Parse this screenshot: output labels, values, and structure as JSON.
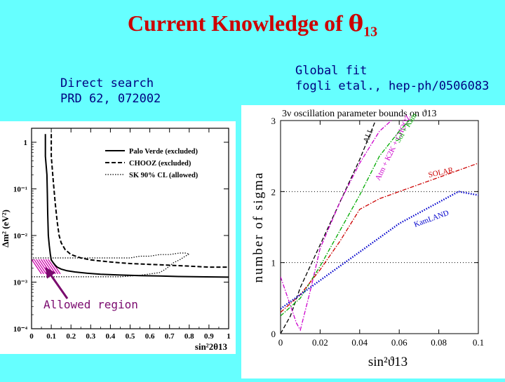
{
  "slide": {
    "title_text": "Current Knowledge of ",
    "title_symbol": "θ",
    "title_sub": "13"
  },
  "captions": {
    "left": [
      "Direct search",
      "PRD 62, 072002"
    ],
    "right": [
      "Global fit",
      "fogli etal., hep-ph/0506083"
    ]
  },
  "annotation": {
    "allowed_region": "Allowed region"
  },
  "chart_data": [
    {
      "type": "line",
      "xlabel": "sin²2θ13",
      "ylabel": "Δm² (eV²)",
      "x_ticks": [
        "0",
        "0.1",
        "0.2",
        "0.3",
        "0.4",
        "0.5",
        "0.6",
        "0.7",
        "0.8",
        "0.9",
        "1"
      ],
      "y_ticks": [
        "10⁻⁴",
        "10⁻³",
        "10⁻²",
        "10⁻¹",
        "1"
      ],
      "xlim": [
        0,
        1
      ],
      "ylim_log10": [
        -4,
        0.3
      ],
      "legend_position": "top-right",
      "series": [
        {
          "name": "Palo Verde (excluded)",
          "style": "solid",
          "color": "#000000",
          "x": [
            0.07,
            0.07,
            0.078,
            0.08,
            0.082,
            0.085,
            0.09,
            0.095,
            0.1,
            0.11,
            0.12,
            0.13,
            0.15,
            0.18,
            0.22,
            0.28,
            0.35,
            0.45,
            0.55,
            0.65,
            0.75,
            0.85,
            1.0
          ],
          "y": [
            1.5,
            0.5,
            0.2,
            0.08,
            0.03,
            0.01,
            0.006,
            0.004,
            0.003,
            0.0026,
            0.0023,
            0.0021,
            0.0019,
            0.00175,
            0.00165,
            0.00155,
            0.00148,
            0.00142,
            0.00138,
            0.00135,
            0.00132,
            0.0013,
            0.00128
          ]
        },
        {
          "name": "CHOOZ (excluded)",
          "style": "dashed",
          "color": "#000000",
          "x": [
            0.1,
            0.1,
            0.11,
            0.12,
            0.13,
            0.14,
            0.15,
            0.17,
            0.2,
            0.25,
            0.3,
            0.4,
            0.5,
            0.6,
            0.7,
            0.8,
            0.9,
            1.0
          ],
          "y": [
            1.5,
            0.5,
            0.15,
            0.05,
            0.02,
            0.01,
            0.007,
            0.005,
            0.0039,
            0.0033,
            0.003,
            0.0027,
            0.0025,
            0.0024,
            0.0023,
            0.0022,
            0.0021,
            0.0021
          ]
        },
        {
          "name": "SK 90% CL (allowed)",
          "style": "dotted",
          "color": "#000000",
          "x": [
            0.0,
            0.3,
            0.45,
            0.5,
            0.55,
            0.6,
            0.65,
            0.68,
            0.7,
            0.72,
            0.75,
            0.78,
            0.8,
            0.78,
            0.75,
            0.7,
            0.65,
            0.6,
            0.55,
            0.5,
            0.45,
            0.3,
            0.0
          ],
          "y": [
            0.0013,
            0.0013,
            0.0013,
            0.00135,
            0.0014,
            0.0015,
            0.0016,
            0.0019,
            0.0022,
            0.0026,
            0.003,
            0.0036,
            0.004,
            0.0042,
            0.0042,
            0.0039,
            0.0039,
            0.0036,
            0.0036,
            0.0033,
            0.0033,
            0.0033,
            0.0033
          ]
        }
      ]
    },
    {
      "type": "line",
      "title": "3ν oscillation parameter bounds on ϑ13",
      "xlabel": "sin²ϑ13",
      "ylabel": "number of sigma",
      "x_ticks": [
        "0",
        "0.02",
        "0.04",
        "0.06",
        "0.08",
        "0.1"
      ],
      "y_ticks": [
        "0",
        "1",
        "2",
        "3"
      ],
      "xlim": [
        0,
        0.1
      ],
      "ylim": [
        0,
        3
      ],
      "grid": "dotted horizontal at 1, 2",
      "series": [
        {
          "name": "ALL",
          "style": "dashed",
          "color": "#000000",
          "x": [
            0.0,
            0.005,
            0.01,
            0.02,
            0.03,
            0.04,
            0.048
          ],
          "y": [
            0.0,
            0.25,
            0.65,
            1.25,
            1.85,
            2.45,
            3.0
          ]
        },
        {
          "name": "Atm + K2K + CHOOZ",
          "style": "dash-dot",
          "color": "#CC00CC",
          "x": [
            0.0,
            0.008,
            0.01,
            0.015,
            0.02,
            0.03,
            0.04,
            0.05,
            0.056
          ],
          "y": [
            0.8,
            0.15,
            0.05,
            0.6,
            1.2,
            1.85,
            2.4,
            2.85,
            3.0
          ]
        },
        {
          "name": "Sol + Kam",
          "style": "dash-dot",
          "color": "#00AA00",
          "x": [
            0.0,
            0.01,
            0.02,
            0.03,
            0.04,
            0.05,
            0.06,
            0.065
          ],
          "y": [
            0.25,
            0.5,
            0.95,
            1.45,
            1.95,
            2.5,
            2.85,
            3.0
          ]
        },
        {
          "name": "SOLAR",
          "style": "dash-dot",
          "color": "#CC0000",
          "x": [
            0.0,
            0.01,
            0.02,
            0.03,
            0.04,
            0.05,
            0.06,
            0.07,
            0.08,
            0.09,
            0.1
          ],
          "y": [
            0.3,
            0.55,
            0.9,
            1.3,
            1.75,
            1.9,
            2.0,
            2.1,
            2.2,
            2.3,
            2.4
          ]
        },
        {
          "name": "KamLAND",
          "style": "dotted",
          "color": "#0000CC",
          "x": [
            0.0,
            0.01,
            0.02,
            0.03,
            0.04,
            0.05,
            0.06,
            0.07,
            0.08,
            0.09,
            0.1
          ],
          "y": [
            0.35,
            0.55,
            0.75,
            0.95,
            1.15,
            1.35,
            1.55,
            1.7,
            1.85,
            2.0,
            1.95
          ]
        }
      ]
    }
  ]
}
